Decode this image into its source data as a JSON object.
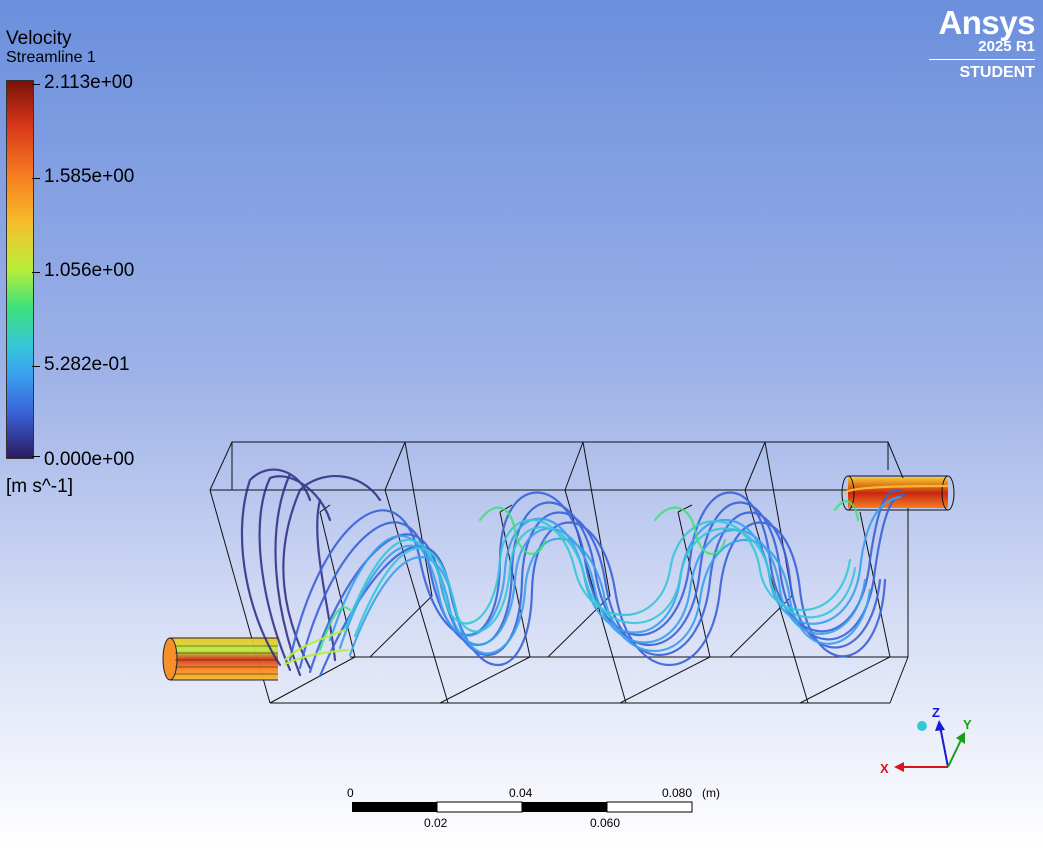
{
  "legend": {
    "title": "Velocity",
    "subtitle": "Streamline 1",
    "ticks": [
      "2.113e+00",
      "1.585e+00",
      "1.056e+00",
      "5.282e-01",
      "0.000e+00"
    ],
    "units": "[m s^-1]"
  },
  "brand": {
    "name": "Ansys",
    "version": "2025 R1",
    "edition": "STUDENT"
  },
  "scale_bar": {
    "top_labels": [
      "0",
      "0.04",
      "0.080"
    ],
    "bottom_labels": [
      "0.02",
      "0.060"
    ],
    "unit": "(m)"
  },
  "axes_triad": {
    "x_label": "X",
    "y_label": "Y",
    "z_label": "Z",
    "x_color": "#d81818",
    "y_color": "#18a018",
    "z_color": "#1818d8"
  },
  "colors": {
    "bg_top": "#6b8fdd",
    "bg_bottom": "#ffffff"
  }
}
